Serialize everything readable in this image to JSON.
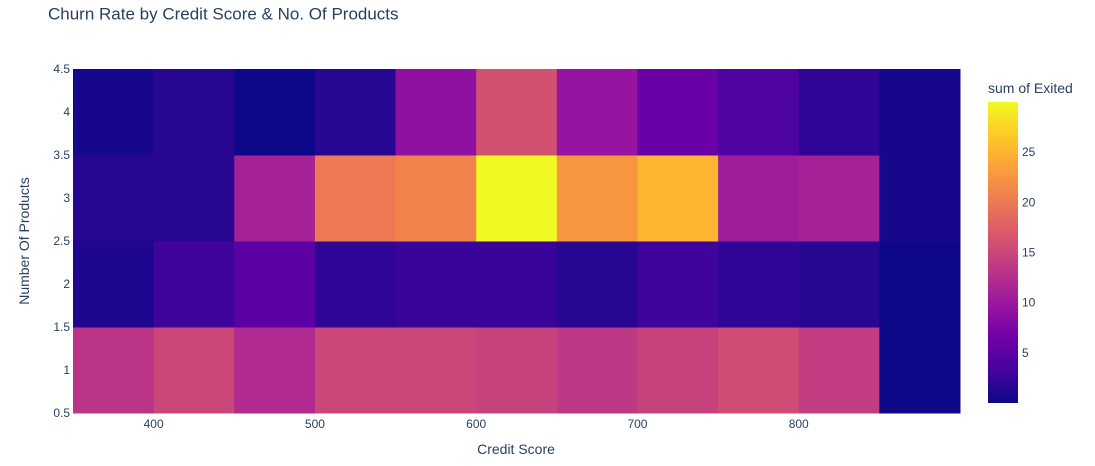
{
  "chart_data": {
    "type": "heatmap",
    "title": "Churn Rate by Credit Score & No. Of Products",
    "xlabel": "Credit Score",
    "ylabel": "Number Of Products",
    "x_bins": [
      [
        350,
        400
      ],
      [
        400,
        450
      ],
      [
        450,
        500
      ],
      [
        500,
        550
      ],
      [
        550,
        600
      ],
      [
        600,
        650
      ],
      [
        650,
        700
      ],
      [
        700,
        750
      ],
      [
        750,
        800
      ],
      [
        800,
        850
      ],
      [
        850,
        900
      ]
    ],
    "y_bins": [
      [
        0.5,
        1.5
      ],
      [
        1.5,
        2.5
      ],
      [
        2.5,
        3.5
      ],
      [
        3.5,
        4.5
      ]
    ],
    "y_categories": [
      1,
      2,
      3,
      4
    ],
    "values": [
      [
        13,
        15,
        12,
        15,
        15,
        14.5,
        13.5,
        14.5,
        15.5,
        14,
        0
      ],
      [
        1,
        3,
        5,
        2,
        2.5,
        2.5,
        1.5,
        3,
        2,
        1.5,
        0
      ],
      [
        1.5,
        1.5,
        11,
        20,
        21,
        30,
        22.5,
        25,
        10.5,
        11,
        0.5
      ],
      [
        0.5,
        1.5,
        0,
        1.5,
        9,
        16,
        9.5,
        6,
        4,
        2,
        0.5
      ]
    ],
    "xlim": [
      350,
      900
    ],
    "ylim": [
      0.5,
      4.5
    ],
    "x_ticks": [
      400,
      500,
      600,
      700,
      800
    ],
    "y_ticks": [
      0.5,
      1,
      1.5,
      2,
      2.5,
      3,
      3.5,
      4,
      4.5
    ],
    "y_tick_labels": [
      "0.5",
      "1",
      "1.5",
      "2",
      "2.5",
      "3",
      "3.5",
      "4",
      "4.5"
    ],
    "colorbar": {
      "title": "sum of Exited",
      "range": [
        0,
        30
      ],
      "ticks": [
        5,
        10,
        15,
        20,
        25
      ],
      "colorscale": [
        "#0d0887",
        "#46039f",
        "#7201a8",
        "#9c179e",
        "#bd3786",
        "#d8576b",
        "#ed7953",
        "#fb9f3a",
        "#fdca26",
        "#f0f921"
      ]
    },
    "grid": false
  }
}
